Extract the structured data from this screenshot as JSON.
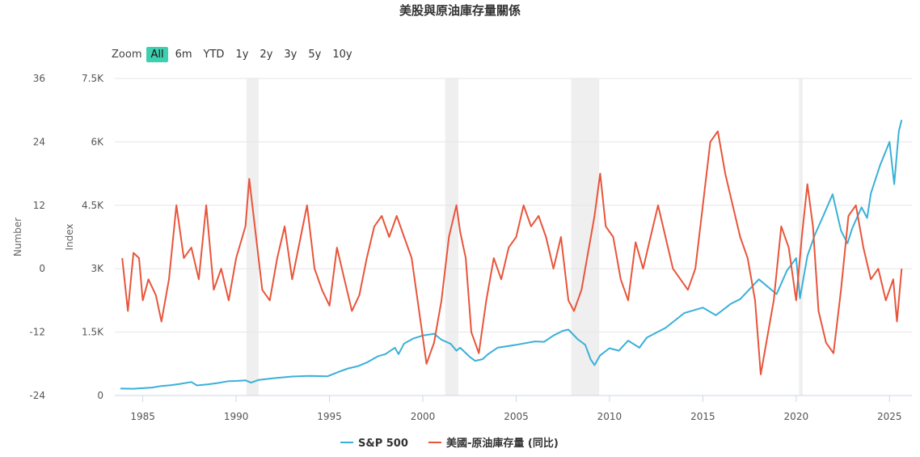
{
  "title": "美股與原油庫存量關係",
  "zoom": {
    "label": "Zoom",
    "buttons": [
      "All",
      "6m",
      "YTD",
      "1y",
      "2y",
      "3y",
      "5y",
      "10y"
    ],
    "active": "All"
  },
  "chart_data": {
    "type": "line",
    "title": "美股與原油庫存量關係",
    "x_ticks": [
      "1985",
      "1990",
      "1995",
      "2000",
      "2005",
      "2010",
      "2015",
      "2020",
      "2025"
    ],
    "y_left_outer": {
      "label": "Number",
      "ticks": [
        "36",
        "24",
        "12",
        "0",
        "-12",
        "-24"
      ],
      "range": [
        -24,
        36
      ]
    },
    "y_left_inner": {
      "label": "Index",
      "ticks": [
        "7.5K",
        "6K",
        "4.5K",
        "3K",
        "1.5K",
        "0"
      ],
      "range": [
        0,
        7500
      ]
    },
    "recessions": [
      [
        1990.55,
        1991.2
      ],
      [
        2001.2,
        2001.9
      ],
      [
        2007.95,
        2009.45
      ],
      [
        2020.15,
        2020.35
      ]
    ],
    "series": [
      {
        "name": "S&P 500",
        "axis": "index",
        "color": "#3ab0d8",
        "points": [
          [
            1983.8,
            165
          ],
          [
            1984.5,
            160
          ],
          [
            1985,
            175
          ],
          [
            1985.5,
            190
          ],
          [
            1986,
            225
          ],
          [
            1986.5,
            245
          ],
          [
            1987,
            275
          ],
          [
            1987.6,
            320
          ],
          [
            1987.9,
            240
          ],
          [
            1988.5,
            265
          ],
          [
            1989,
            295
          ],
          [
            1989.6,
            340
          ],
          [
            1990,
            345
          ],
          [
            1990.5,
            360
          ],
          [
            1990.8,
            305
          ],
          [
            1991.2,
            370
          ],
          [
            1992,
            410
          ],
          [
            1993,
            450
          ],
          [
            1994,
            465
          ],
          [
            1994.9,
            455
          ],
          [
            1995.5,
            560
          ],
          [
            1996,
            640
          ],
          [
            1996.5,
            690
          ],
          [
            1997,
            780
          ],
          [
            1997.6,
            930
          ],
          [
            1998,
            980
          ],
          [
            1998.5,
            1130
          ],
          [
            1998.7,
            980
          ],
          [
            1999,
            1230
          ],
          [
            1999.5,
            1350
          ],
          [
            2000,
            1420
          ],
          [
            2000.6,
            1460
          ],
          [
            2001,
            1320
          ],
          [
            2001.5,
            1220
          ],
          [
            2001.8,
            1060
          ],
          [
            2002,
            1130
          ],
          [
            2002.5,
            920
          ],
          [
            2002.8,
            820
          ],
          [
            2003.2,
            860
          ],
          [
            2003.5,
            980
          ],
          [
            2004,
            1130
          ],
          [
            2005,
            1200
          ],
          [
            2006,
            1280
          ],
          [
            2006.5,
            1270
          ],
          [
            2007,
            1420
          ],
          [
            2007.5,
            1530
          ],
          [
            2007.8,
            1560
          ],
          [
            2008.3,
            1330
          ],
          [
            2008.7,
            1200
          ],
          [
            2009,
            850
          ],
          [
            2009.2,
            720
          ],
          [
            2009.5,
            950
          ],
          [
            2010,
            1120
          ],
          [
            2010.5,
            1060
          ],
          [
            2011,
            1300
          ],
          [
            2011.6,
            1130
          ],
          [
            2012,
            1370
          ],
          [
            2013,
            1600
          ],
          [
            2014,
            1950
          ],
          [
            2015,
            2080
          ],
          [
            2015.7,
            1900
          ],
          [
            2016,
            2000
          ],
          [
            2016.5,
            2170
          ],
          [
            2017,
            2280
          ],
          [
            2018,
            2750
          ],
          [
            2018.95,
            2400
          ],
          [
            2019.5,
            2950
          ],
          [
            2020,
            3250
          ],
          [
            2020.2,
            2300
          ],
          [
            2020.6,
            3300
          ],
          [
            2021,
            3800
          ],
          [
            2021.5,
            4300
          ],
          [
            2021.95,
            4760
          ],
          [
            2022.4,
            3900
          ],
          [
            2022.75,
            3600
          ],
          [
            2023,
            3950
          ],
          [
            2023.5,
            4450
          ],
          [
            2023.8,
            4200
          ],
          [
            2024,
            4780
          ],
          [
            2024.5,
            5450
          ],
          [
            2025,
            6000
          ],
          [
            2025.25,
            5000
          ],
          [
            2025.5,
            6250
          ],
          [
            2025.65,
            6520
          ]
        ]
      },
      {
        "name": "美國-原油庫存量 (同比)",
        "axis": "number",
        "color": "#e8553b",
        "points": [
          [
            1983.9,
            2
          ],
          [
            1984.2,
            -8
          ],
          [
            1984.5,
            3
          ],
          [
            1984.8,
            2
          ],
          [
            1985,
            -6
          ],
          [
            1985.3,
            -2
          ],
          [
            1985.7,
            -5
          ],
          [
            1986,
            -10
          ],
          [
            1986.4,
            -2
          ],
          [
            1986.8,
            12
          ],
          [
            1987.2,
            2
          ],
          [
            1987.6,
            4
          ],
          [
            1988,
            -2
          ],
          [
            1988.4,
            12
          ],
          [
            1988.8,
            -4
          ],
          [
            1989.2,
            0
          ],
          [
            1989.6,
            -6
          ],
          [
            1990,
            2
          ],
          [
            1990.5,
            8
          ],
          [
            1990.7,
            17
          ],
          [
            1991,
            8
          ],
          [
            1991.4,
            -4
          ],
          [
            1991.8,
            -6
          ],
          [
            1992.2,
            2
          ],
          [
            1992.6,
            8
          ],
          [
            1993,
            -2
          ],
          [
            1993.4,
            5
          ],
          [
            1993.8,
            12
          ],
          [
            1994.2,
            0
          ],
          [
            1994.6,
            -4
          ],
          [
            1995,
            -7
          ],
          [
            1995.4,
            4
          ],
          [
            1995.8,
            -2
          ],
          [
            1996.2,
            -8
          ],
          [
            1996.6,
            -5
          ],
          [
            1997,
            2
          ],
          [
            1997.4,
            8
          ],
          [
            1997.8,
            10
          ],
          [
            1998.2,
            6
          ],
          [
            1998.6,
            10
          ],
          [
            1999,
            6
          ],
          [
            1999.4,
            2
          ],
          [
            1999.8,
            -8
          ],
          [
            2000.2,
            -18
          ],
          [
            2000.6,
            -14
          ],
          [
            2001,
            -6
          ],
          [
            2001.4,
            6
          ],
          [
            2001.8,
            12
          ],
          [
            2002,
            7
          ],
          [
            2002.3,
            2
          ],
          [
            2002.6,
            -12
          ],
          [
            2003,
            -16
          ],
          [
            2003.4,
            -6
          ],
          [
            2003.8,
            2
          ],
          [
            2004.2,
            -2
          ],
          [
            2004.6,
            4
          ],
          [
            2005,
            6
          ],
          [
            2005.4,
            12
          ],
          [
            2005.8,
            8
          ],
          [
            2006.2,
            10
          ],
          [
            2006.6,
            6
          ],
          [
            2007,
            0
          ],
          [
            2007.4,
            6
          ],
          [
            2007.8,
            -6
          ],
          [
            2008.1,
            -8
          ],
          [
            2008.5,
            -4
          ],
          [
            2008.8,
            2
          ],
          [
            2009.2,
            10
          ],
          [
            2009.5,
            18
          ],
          [
            2009.8,
            8
          ],
          [
            2010.2,
            6
          ],
          [
            2010.6,
            -2
          ],
          [
            2011,
            -6
          ],
          [
            2011.4,
            5
          ],
          [
            2011.8,
            0
          ],
          [
            2012.2,
            6
          ],
          [
            2012.6,
            12
          ],
          [
            2013,
            6
          ],
          [
            2013.4,
            0
          ],
          [
            2013.8,
            -2
          ],
          [
            2014.2,
            -4
          ],
          [
            2014.6,
            0
          ],
          [
            2015,
            12
          ],
          [
            2015.4,
            24
          ],
          [
            2015.8,
            26
          ],
          [
            2016.2,
            18
          ],
          [
            2016.6,
            12
          ],
          [
            2017,
            6
          ],
          [
            2017.4,
            2
          ],
          [
            2017.8,
            -6
          ],
          [
            2018.1,
            -20
          ],
          [
            2018.4,
            -14
          ],
          [
            2018.8,
            -6
          ],
          [
            2019.2,
            8
          ],
          [
            2019.6,
            4
          ],
          [
            2020,
            -6
          ],
          [
            2020.3,
            6
          ],
          [
            2020.6,
            16
          ],
          [
            2020.9,
            8
          ],
          [
            2021.2,
            -8
          ],
          [
            2021.6,
            -14
          ],
          [
            2022,
            -16
          ],
          [
            2022.4,
            -4
          ],
          [
            2022.8,
            10
          ],
          [
            2023.2,
            12
          ],
          [
            2023.6,
            4
          ],
          [
            2024,
            -2
          ],
          [
            2024.4,
            0
          ],
          [
            2024.8,
            -6
          ],
          [
            2025.2,
            -2
          ],
          [
            2025.4,
            -10
          ],
          [
            2025.65,
            0
          ]
        ]
      }
    ],
    "legend": {
      "position": "bottom-center"
    }
  }
}
